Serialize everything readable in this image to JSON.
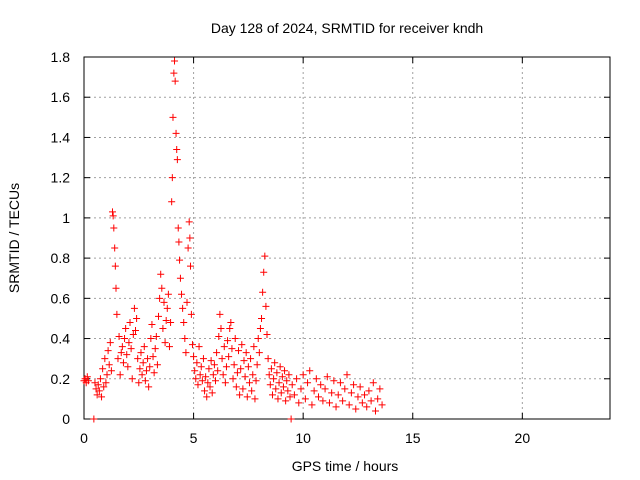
{
  "chart_data": {
    "type": "scatter",
    "title": "Day 128 of 2024, SRMTID for receiver kndh",
    "xlabel": "GPS time / hours",
    "ylabel": "SRMTID / TECUs",
    "xlim": [
      0,
      24
    ],
    "ylim": [
      0,
      1.8
    ],
    "xticks": [
      0,
      5,
      10,
      15,
      20
    ],
    "xtick_labels": [
      "0",
      "5",
      "10",
      "15",
      "20"
    ],
    "yticks": [
      0,
      0.2,
      0.4,
      0.6,
      0.8,
      1,
      1.2,
      1.4,
      1.6,
      1.8
    ],
    "ytick_labels": [
      "0",
      "0.2",
      "0.4",
      "0.6",
      "0.8",
      "1",
      "1.2",
      "1.4",
      "1.6",
      "1.8"
    ],
    "grid": true,
    "marker_color": "#ff0000",
    "marker": "+",
    "series": [
      {
        "name": "SRMTID",
        "points": [
          [
            0.0,
            0.19
          ],
          [
            0.05,
            0.2
          ],
          [
            0.1,
            0.18
          ],
          [
            0.15,
            0.21
          ],
          [
            0.2,
            0.19
          ],
          [
            0.45,
            0.0
          ],
          [
            0.5,
            0.18
          ],
          [
            0.55,
            0.15
          ],
          [
            0.6,
            0.12
          ],
          [
            0.65,
            0.17
          ],
          [
            0.7,
            0.14
          ],
          [
            0.75,
            0.2
          ],
          [
            0.8,
            0.11
          ],
          [
            0.85,
            0.25
          ],
          [
            0.9,
            0.16
          ],
          [
            0.95,
            0.3
          ],
          [
            1.0,
            0.18
          ],
          [
            1.05,
            0.22
          ],
          [
            1.1,
            0.34
          ],
          [
            1.15,
            0.27
          ],
          [
            1.2,
            0.38
          ],
          [
            1.25,
            0.24
          ],
          [
            1.3,
            1.03
          ],
          [
            1.33,
            1.01
          ],
          [
            1.36,
            0.95
          ],
          [
            1.4,
            0.85
          ],
          [
            1.43,
            0.76
          ],
          [
            1.46,
            0.65
          ],
          [
            1.5,
            0.52
          ],
          [
            1.55,
            0.3
          ],
          [
            1.6,
            0.41
          ],
          [
            1.65,
            0.22
          ],
          [
            1.7,
            0.33
          ],
          [
            1.75,
            0.36
          ],
          [
            1.8,
            0.28
          ],
          [
            1.85,
            0.4
          ],
          [
            1.9,
            0.45
          ],
          [
            1.95,
            0.32
          ],
          [
            2.0,
            0.26
          ],
          [
            2.05,
            0.38
          ],
          [
            2.1,
            0.48
          ],
          [
            2.15,
            0.35
          ],
          [
            2.2,
            0.2
          ],
          [
            2.25,
            0.42
          ],
          [
            2.3,
            0.55
          ],
          [
            2.35,
            0.44
          ],
          [
            2.4,
            0.5
          ],
          [
            2.45,
            0.3
          ],
          [
            2.5,
            0.18
          ],
          [
            2.55,
            0.25
          ],
          [
            2.6,
            0.33
          ],
          [
            2.65,
            0.22
          ],
          [
            2.7,
            0.28
          ],
          [
            2.75,
            0.36
          ],
          [
            2.8,
            0.19
          ],
          [
            2.85,
            0.24
          ],
          [
            2.9,
            0.3
          ],
          [
            2.95,
            0.16
          ],
          [
            3.0,
            0.26
          ],
          [
            3.05,
            0.4
          ],
          [
            3.1,
            0.47
          ],
          [
            3.15,
            0.31
          ],
          [
            3.2,
            0.23
          ],
          [
            3.25,
            0.35
          ],
          [
            3.3,
            0.41
          ],
          [
            3.35,
            0.27
          ],
          [
            3.4,
            0.51
          ],
          [
            3.45,
            0.6
          ],
          [
            3.5,
            0.72
          ],
          [
            3.55,
            0.65
          ],
          [
            3.6,
            0.45
          ],
          [
            3.65,
            0.58
          ],
          [
            3.7,
            0.38
          ],
          [
            3.75,
            0.49
          ],
          [
            3.8,
            0.55
          ],
          [
            3.85,
            0.62
          ],
          [
            3.9,
            0.36
          ],
          [
            3.95,
            0.48
          ],
          [
            4.0,
            1.08
          ],
          [
            4.03,
            1.2
          ],
          [
            4.06,
            1.5
          ],
          [
            4.1,
            1.72
          ],
          [
            4.13,
            1.78
          ],
          [
            4.16,
            1.68
          ],
          [
            4.2,
            1.42
          ],
          [
            4.23,
            1.34
          ],
          [
            4.26,
            1.29
          ],
          [
            4.3,
            0.95
          ],
          [
            4.33,
            0.88
          ],
          [
            4.36,
            0.79
          ],
          [
            4.4,
            0.7
          ],
          [
            4.45,
            0.62
          ],
          [
            4.5,
            0.55
          ],
          [
            4.55,
            0.48
          ],
          [
            4.6,
            0.4
          ],
          [
            4.65,
            0.33
          ],
          [
            4.7,
            0.58
          ],
          [
            4.75,
            0.85
          ],
          [
            4.8,
            0.98
          ],
          [
            4.83,
            0.9
          ],
          [
            4.86,
            0.76
          ],
          [
            4.9,
            0.52
          ],
          [
            4.95,
            0.37
          ],
          [
            5.0,
            0.31
          ],
          [
            5.05,
            0.24
          ],
          [
            5.1,
            0.2
          ],
          [
            5.15,
            0.28
          ],
          [
            5.2,
            0.17
          ],
          [
            5.25,
            0.36
          ],
          [
            5.3,
            0.22
          ],
          [
            5.35,
            0.26
          ],
          [
            5.4,
            0.19
          ],
          [
            5.45,
            0.3
          ],
          [
            5.5,
            0.14
          ],
          [
            5.55,
            0.21
          ],
          [
            5.6,
            0.11
          ],
          [
            5.65,
            0.18
          ],
          [
            5.7,
            0.25
          ],
          [
            5.75,
            0.16
          ],
          [
            5.8,
            0.29
          ],
          [
            5.85,
            0.13
          ],
          [
            5.9,
            0.22
          ],
          [
            5.95,
            0.27
          ],
          [
            6.0,
            0.19
          ],
          [
            6.05,
            0.33
          ],
          [
            6.1,
            0.24
          ],
          [
            6.15,
            0.41
          ],
          [
            6.2,
            0.52
          ],
          [
            6.25,
            0.45
          ],
          [
            6.3,
            0.3
          ],
          [
            6.35,
            0.22
          ],
          [
            6.4,
            0.36
          ],
          [
            6.45,
            0.18
          ],
          [
            6.5,
            0.26
          ],
          [
            6.55,
            0.39
          ],
          [
            6.6,
            0.31
          ],
          [
            6.65,
            0.45
          ],
          [
            6.7,
            0.48
          ],
          [
            6.75,
            0.35
          ],
          [
            6.8,
            0.2
          ],
          [
            6.85,
            0.27
          ],
          [
            6.9,
            0.4
          ],
          [
            6.95,
            0.16
          ],
          [
            7.0,
            0.23
          ],
          [
            7.05,
            0.34
          ],
          [
            7.1,
            0.12
          ],
          [
            7.15,
            0.25
          ],
          [
            7.2,
            0.37
          ],
          [
            7.25,
            0.15
          ],
          [
            7.3,
            0.29
          ],
          [
            7.35,
            0.21
          ],
          [
            7.4,
            0.33
          ],
          [
            7.45,
            0.11
          ],
          [
            7.5,
            0.26
          ],
          [
            7.55,
            0.18
          ],
          [
            7.6,
            0.3
          ],
          [
            7.65,
            0.14
          ],
          [
            7.7,
            0.22
          ],
          [
            7.75,
            0.36
          ],
          [
            7.8,
            0.1
          ],
          [
            7.85,
            0.19
          ],
          [
            7.9,
            0.27
          ],
          [
            7.95,
            0.4
          ],
          [
            8.0,
            0.33
          ],
          [
            8.05,
            0.45
          ],
          [
            8.1,
            0.5
          ],
          [
            8.15,
            0.63
          ],
          [
            8.2,
            0.73
          ],
          [
            8.25,
            0.81
          ],
          [
            8.3,
            0.56
          ],
          [
            8.35,
            0.42
          ],
          [
            8.4,
            0.3
          ],
          [
            8.45,
            0.22
          ],
          [
            8.5,
            0.17
          ],
          [
            8.55,
            0.25
          ],
          [
            8.6,
            0.12
          ],
          [
            8.65,
            0.2
          ],
          [
            8.7,
            0.28
          ],
          [
            8.75,
            0.15
          ],
          [
            8.8,
            0.23
          ],
          [
            8.85,
            0.1
          ],
          [
            8.9,
            0.18
          ],
          [
            8.95,
            0.26
          ],
          [
            9.0,
            0.13
          ],
          [
            9.05,
            0.21
          ],
          [
            9.1,
            0.16
          ],
          [
            9.15,
            0.24
          ],
          [
            9.2,
            0.09
          ],
          [
            9.25,
            0.19
          ],
          [
            9.3,
            0.14
          ],
          [
            9.35,
            0.22
          ],
          [
            9.4,
            0.11
          ],
          [
            9.45,
            0.0
          ],
          [
            9.5,
            0.17
          ],
          [
            9.6,
            0.12
          ],
          [
            9.7,
            0.2
          ],
          [
            9.8,
            0.08
          ],
          [
            9.9,
            0.15
          ],
          [
            10.0,
            0.22
          ],
          [
            10.1,
            0.1
          ],
          [
            10.2,
            0.18
          ],
          [
            10.3,
            0.24
          ],
          [
            10.4,
            0.07
          ],
          [
            10.5,
            0.14
          ],
          [
            10.6,
            0.2
          ],
          [
            10.7,
            0.11
          ],
          [
            10.8,
            0.17
          ],
          [
            10.9,
            0.09
          ],
          [
            11.0,
            0.15
          ],
          [
            11.1,
            0.21
          ],
          [
            11.2,
            0.08
          ],
          [
            11.3,
            0.13
          ],
          [
            11.4,
            0.19
          ],
          [
            11.5,
            0.06
          ],
          [
            11.6,
            0.12
          ],
          [
            11.7,
            0.18
          ],
          [
            11.8,
            0.09
          ],
          [
            11.9,
            0.15
          ],
          [
            12.0,
            0.22
          ],
          [
            12.1,
            0.07
          ],
          [
            12.2,
            0.13
          ],
          [
            12.3,
            0.17
          ],
          [
            12.4,
            0.05
          ],
          [
            12.5,
            0.11
          ],
          [
            12.6,
            0.16
          ],
          [
            12.7,
            0.08
          ],
          [
            12.8,
            0.12
          ],
          [
            12.9,
            0.06
          ],
          [
            13.0,
            0.14
          ],
          [
            13.1,
            0.09
          ],
          [
            13.2,
            0.18
          ],
          [
            13.3,
            0.04
          ],
          [
            13.4,
            0.1
          ],
          [
            13.5,
            0.15
          ],
          [
            13.6,
            0.07
          ]
        ]
      }
    ]
  }
}
